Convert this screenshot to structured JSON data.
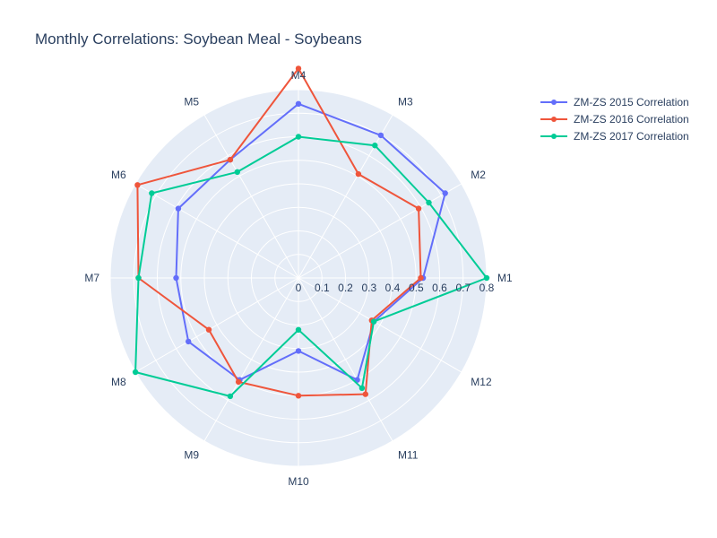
{
  "chart_data": {
    "type": "radar",
    "title": "Monthly Correlations: Soybean Meal - Soybeans",
    "categories": [
      "M1",
      "M2",
      "M3",
      "M4",
      "M5",
      "M6",
      "M7",
      "M8",
      "M9",
      "M10",
      "M11",
      "M12"
    ],
    "radial_range": [
      0,
      0.8
    ],
    "radial_ticks": [
      "0",
      "0.1",
      "0.2",
      "0.3",
      "0.4",
      "0.5",
      "0.6",
      "0.7",
      "0.8"
    ],
    "grid": true,
    "legend_position": "top-right",
    "series": [
      {
        "name": "ZM-ZS 2015 Correlation",
        "color": "#636efa",
        "values": [
          0.53,
          0.72,
          0.7,
          0.74,
          0.58,
          0.59,
          0.52,
          0.54,
          0.5,
          0.31,
          0.5,
          0.37
        ]
      },
      {
        "name": "ZM-ZS 2016 Correlation",
        "color": "#ef553b",
        "values": [
          0.52,
          0.59,
          0.51,
          0.89,
          0.58,
          0.79,
          0.68,
          0.44,
          0.51,
          0.5,
          0.57,
          0.36
        ]
      },
      {
        "name": "ZM-ZS 2017 Correlation",
        "color": "#00cc96",
        "values": [
          0.8,
          0.64,
          0.65,
          0.6,
          0.52,
          0.72,
          0.68,
          0.8,
          0.58,
          0.22,
          0.54,
          0.37
        ]
      }
    ]
  }
}
